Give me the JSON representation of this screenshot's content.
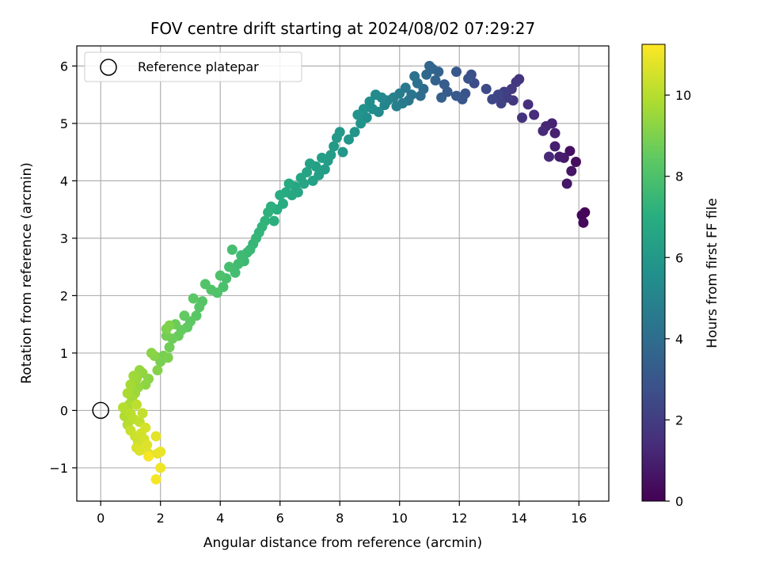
{
  "chart_data": {
    "type": "scatter",
    "title": "FOV centre drift starting at 2024/08/02 07:29:27",
    "xlabel": "Angular distance from reference (arcmin)",
    "ylabel": "Rotation from reference (arcmin)",
    "xlim": [
      -0.8,
      17.0
    ],
    "ylim": [
      -1.58,
      6.35
    ],
    "xticks": [
      0,
      2,
      4,
      6,
      8,
      10,
      12,
      14,
      16
    ],
    "yticks": [
      -1,
      0,
      1,
      2,
      3,
      4,
      5,
      6
    ],
    "grid": true,
    "legend": {
      "placement": "top-left",
      "entries": [
        "Reference platepar"
      ]
    },
    "reference_point": {
      "name": "Reference platepar",
      "x": 0,
      "y": 0
    },
    "colorbar": {
      "label": "Hours from first FF file",
      "range": [
        0,
        11.25
      ],
      "ticks": [
        0,
        2,
        4,
        6,
        8,
        10
      ],
      "colormap": "viridis"
    },
    "points": [
      [
        16.2,
        3.45,
        0.1
      ],
      [
        16.1,
        3.4,
        0.2
      ],
      [
        16.15,
        3.27,
        0.3
      ],
      [
        15.9,
        4.33,
        0.4
      ],
      [
        15.7,
        4.52,
        0.5
      ],
      [
        15.75,
        4.17,
        0.6
      ],
      [
        15.6,
        3.95,
        0.7
      ],
      [
        15.5,
        4.4,
        0.8
      ],
      [
        15.35,
        4.42,
        0.9
      ],
      [
        15.2,
        4.6,
        1.0
      ],
      [
        15.2,
        4.83,
        1.05
      ],
      [
        15.1,
        5.0,
        1.1
      ],
      [
        14.9,
        4.95,
        1.2
      ],
      [
        14.8,
        4.87,
        1.3
      ],
      [
        15.0,
        4.42,
        1.35
      ],
      [
        14.5,
        5.15,
        1.4
      ],
      [
        14.3,
        5.33,
        1.5
      ],
      [
        14.1,
        5.1,
        1.6
      ],
      [
        14.0,
        5.77,
        1.7
      ],
      [
        13.9,
        5.72,
        1.75
      ],
      [
        13.8,
        5.4,
        1.8
      ],
      [
        13.75,
        5.6,
        1.9
      ],
      [
        13.6,
        5.45,
        2.0
      ],
      [
        13.5,
        5.55,
        2.1
      ],
      [
        13.4,
        5.35,
        2.2
      ],
      [
        13.3,
        5.5,
        2.3
      ],
      [
        13.1,
        5.42,
        2.4
      ],
      [
        12.9,
        5.6,
        2.5
      ],
      [
        12.5,
        5.7,
        2.6
      ],
      [
        12.4,
        5.85,
        2.7
      ],
      [
        12.3,
        5.78,
        2.8
      ],
      [
        12.2,
        5.52,
        2.9
      ],
      [
        12.1,
        5.42,
        3.0
      ],
      [
        11.9,
        5.9,
        3.05
      ],
      [
        11.9,
        5.48,
        3.1
      ],
      [
        11.6,
        5.55,
        3.2
      ],
      [
        11.5,
        5.68,
        3.3
      ],
      [
        11.4,
        5.45,
        3.4
      ],
      [
        11.3,
        5.9,
        3.5
      ],
      [
        11.2,
        5.75,
        3.55
      ],
      [
        11.1,
        5.95,
        3.6
      ],
      [
        11.0,
        6.0,
        3.7
      ],
      [
        10.9,
        5.85,
        3.8
      ],
      [
        10.8,
        5.6,
        3.9
      ],
      [
        10.7,
        5.48,
        4.0
      ],
      [
        10.6,
        5.7,
        4.1
      ],
      [
        10.5,
        5.82,
        4.2
      ],
      [
        10.4,
        5.5,
        4.3
      ],
      [
        10.3,
        5.4,
        4.4
      ],
      [
        10.2,
        5.62,
        4.5
      ],
      [
        10.1,
        5.35,
        4.6
      ],
      [
        10.0,
        5.52,
        4.7
      ],
      [
        9.9,
        5.3,
        4.8
      ],
      [
        9.8,
        5.45,
        4.9
      ],
      [
        9.6,
        5.4,
        5.0
      ],
      [
        9.5,
        5.32,
        5.1
      ],
      [
        9.4,
        5.45,
        5.2
      ],
      [
        9.3,
        5.2,
        5.3
      ],
      [
        9.2,
        5.5,
        5.35
      ],
      [
        9.1,
        5.25,
        5.4
      ],
      [
        9.0,
        5.38,
        5.5
      ],
      [
        8.9,
        5.1,
        5.6
      ],
      [
        8.8,
        5.25,
        5.65
      ],
      [
        8.7,
        5.0,
        5.7
      ],
      [
        8.6,
        5.15,
        5.75
      ],
      [
        8.5,
        4.85,
        5.8
      ],
      [
        8.3,
        4.72,
        5.85
      ],
      [
        8.1,
        4.5,
        5.9
      ],
      [
        8.0,
        4.85,
        5.95
      ],
      [
        7.9,
        4.75,
        6.0
      ],
      [
        7.8,
        4.6,
        6.05
      ],
      [
        7.7,
        4.45,
        6.1
      ],
      [
        7.6,
        4.35,
        6.15
      ],
      [
        7.5,
        4.2,
        6.2
      ],
      [
        7.4,
        4.4,
        6.25
      ],
      [
        7.3,
        4.1,
        6.3
      ],
      [
        7.2,
        4.25,
        6.35
      ],
      [
        7.1,
        4.0,
        6.4
      ],
      [
        7.0,
        4.3,
        6.45
      ],
      [
        6.9,
        4.15,
        6.5
      ],
      [
        6.8,
        3.95,
        6.55
      ],
      [
        6.7,
        4.05,
        6.6
      ],
      [
        6.6,
        3.8,
        6.65
      ],
      [
        6.5,
        3.9,
        6.7
      ],
      [
        6.4,
        3.75,
        6.75
      ],
      [
        6.3,
        3.95,
        6.8
      ],
      [
        6.2,
        3.8,
        6.85
      ],
      [
        6.1,
        3.6,
        6.9
      ],
      [
        6.0,
        3.75,
        6.95
      ],
      [
        5.9,
        3.5,
        7.0
      ],
      [
        5.8,
        3.3,
        7.1
      ],
      [
        5.7,
        3.55,
        7.15
      ],
      [
        5.6,
        3.45,
        7.2
      ],
      [
        5.5,
        3.3,
        7.25
      ],
      [
        5.4,
        3.2,
        7.3
      ],
      [
        5.3,
        3.1,
        7.35
      ],
      [
        5.2,
        3.0,
        7.4
      ],
      [
        5.1,
        2.9,
        7.45
      ],
      [
        5.0,
        2.8,
        7.5
      ],
      [
        4.9,
        2.75,
        7.55
      ],
      [
        4.8,
        2.6,
        7.6
      ],
      [
        4.7,
        2.7,
        7.65
      ],
      [
        4.6,
        2.55,
        7.7
      ],
      [
        4.5,
        2.4,
        7.75
      ],
      [
        4.4,
        2.8,
        7.8
      ],
      [
        4.3,
        2.5,
        7.85
      ],
      [
        4.2,
        2.3,
        7.9
      ],
      [
        4.1,
        2.15,
        7.95
      ],
      [
        4.0,
        2.35,
        8.0
      ],
      [
        3.9,
        2.05,
        8.05
      ],
      [
        3.7,
        2.1,
        8.1
      ],
      [
        3.5,
        2.2,
        8.15
      ],
      [
        3.4,
        1.9,
        8.2
      ],
      [
        3.3,
        1.8,
        8.25
      ],
      [
        3.2,
        1.65,
        8.3
      ],
      [
        3.1,
        1.95,
        8.35
      ],
      [
        3.0,
        1.55,
        8.4
      ],
      [
        2.9,
        1.45,
        8.45
      ],
      [
        2.8,
        1.65,
        8.5
      ],
      [
        2.7,
        1.4,
        8.55
      ],
      [
        2.6,
        1.3,
        8.6
      ],
      [
        2.5,
        1.5,
        8.65
      ],
      [
        2.4,
        1.25,
        8.7
      ],
      [
        2.3,
        1.1,
        8.75
      ],
      [
        2.2,
        1.3,
        8.8
      ],
      [
        2.1,
        0.95,
        8.85
      ],
      [
        2.0,
        0.85,
        8.9
      ],
      [
        2.25,
        0.92,
        8.95
      ],
      [
        2.2,
        1.42,
        9.0
      ],
      [
        2.3,
        1.48,
        9.05
      ],
      [
        1.9,
        0.7,
        9.1
      ],
      [
        1.8,
        0.95,
        9.15
      ],
      [
        1.7,
        1.0,
        9.2
      ],
      [
        1.6,
        0.55,
        9.25
      ],
      [
        1.5,
        0.45,
        9.3
      ],
      [
        1.4,
        0.65,
        9.35
      ],
      [
        1.3,
        0.7,
        9.4
      ],
      [
        1.25,
        0.4,
        9.45
      ],
      [
        1.2,
        0.55,
        9.5
      ],
      [
        1.15,
        0.3,
        9.55
      ],
      [
        1.1,
        0.6,
        9.6
      ],
      [
        1.05,
        0.2,
        9.65
      ],
      [
        1.0,
        0.45,
        9.7
      ],
      [
        0.95,
        0.1,
        9.75
      ],
      [
        0.9,
        0.3,
        9.8
      ],
      [
        0.85,
        0.0,
        9.85
      ],
      [
        0.8,
        -0.1,
        9.9
      ],
      [
        0.75,
        0.05,
        9.95
      ],
      [
        0.9,
        -0.25,
        10.0
      ],
      [
        1.0,
        -0.05,
        10.05
      ],
      [
        1.1,
        -0.15,
        10.1
      ],
      [
        1.2,
        0.1,
        10.15
      ],
      [
        1.3,
        -0.2,
        10.2
      ],
      [
        1.4,
        -0.05,
        10.25
      ],
      [
        1.0,
        -0.35,
        10.3
      ],
      [
        1.15,
        -0.45,
        10.35
      ],
      [
        1.25,
        -0.55,
        10.4
      ],
      [
        1.35,
        -0.4,
        10.45
      ],
      [
        1.45,
        -0.5,
        10.5
      ],
      [
        1.5,
        -0.3,
        10.55
      ],
      [
        1.2,
        -0.65,
        10.6
      ],
      [
        1.3,
        -0.7,
        10.65
      ],
      [
        1.55,
        -0.6,
        10.7
      ],
      [
        1.6,
        -0.75,
        10.75
      ],
      [
        1.85,
        -0.45,
        10.8
      ],
      [
        1.9,
        -0.75,
        10.85
      ],
      [
        2.0,
        -0.72,
        10.9
      ],
      [
        2.0,
        -1.0,
        11.0
      ],
      [
        1.85,
        -1.2,
        11.1
      ],
      [
        1.6,
        -0.8,
        11.15
      ]
    ]
  }
}
